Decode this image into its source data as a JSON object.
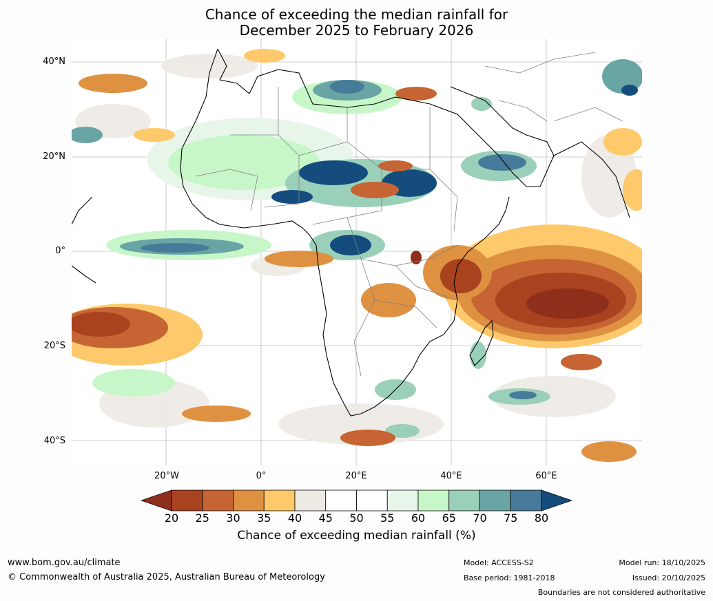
{
  "title_line1": "Chance of exceeding the median rainfall for",
  "title_line2": "December 2025 to February 2026",
  "lat_labels": [
    "40°N",
    "20°N",
    "0°",
    "20°S",
    "40°S"
  ],
  "lon_labels": [
    "20°W",
    "0°",
    "20°E",
    "40°E",
    "60°E"
  ],
  "colorbar": {
    "ticks": [
      "20",
      "25",
      "30",
      "35",
      "40",
      "45",
      "50",
      "55",
      "60",
      "65",
      "70",
      "75",
      "80"
    ],
    "colors": [
      "#8e2f1b",
      "#a8421f",
      "#c66433",
      "#df9142",
      "#fdc96b",
      "#edeae4",
      "#ffffff",
      "#ffffff",
      "#e8f6ea",
      "#c7f7c9",
      "#9acfba",
      "#6aa5a5",
      "#477b9a",
      "#134c7d"
    ],
    "label": "Chance of exceeding median rainfall (%)"
  },
  "footer": {
    "website": "www.bom.gov.au/climate",
    "copyright": "© Commonwealth of Australia 2025, Australian Bureau of Meteorology",
    "model": "Model: ACCESS-S2",
    "base_period": "Base period: 1981-2018",
    "model_run": "Model run: 18/10/2025",
    "issued": "Issued: 20/10/2025",
    "disclaimer": "Boundaries are not considered authoritative"
  }
}
